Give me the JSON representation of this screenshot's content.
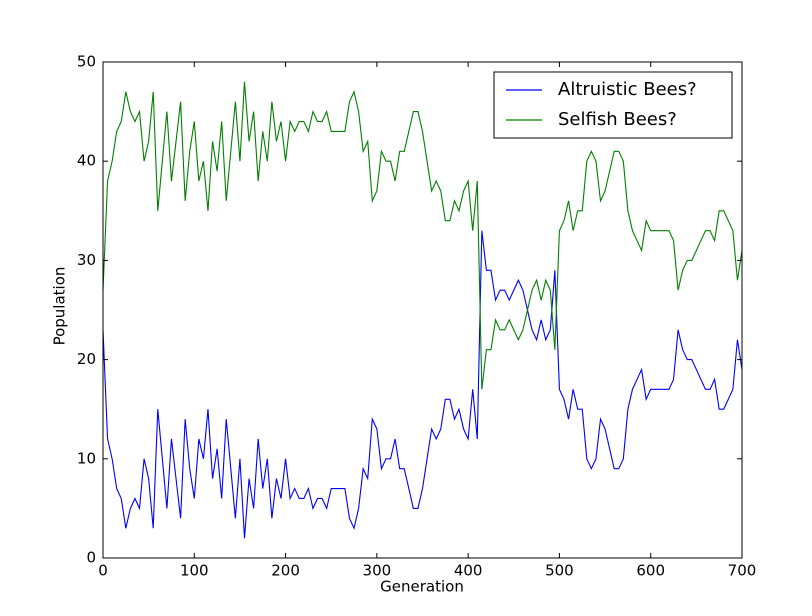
{
  "chart_data": {
    "type": "line",
    "x_label": "Generation",
    "y_label": "Population",
    "x": [
      0,
      5,
      10,
      15,
      20,
      25,
      30,
      35,
      40,
      45,
      50,
      55,
      60,
      65,
      70,
      75,
      80,
      85,
      90,
      95,
      100,
      105,
      110,
      115,
      120,
      125,
      130,
      135,
      140,
      145,
      150,
      155,
      160,
      165,
      170,
      175,
      180,
      185,
      190,
      195,
      200,
      205,
      210,
      215,
      220,
      225,
      230,
      235,
      240,
      245,
      250,
      255,
      260,
      265,
      270,
      275,
      280,
      285,
      290,
      295,
      300,
      305,
      310,
      315,
      320,
      325,
      330,
      335,
      340,
      345,
      350,
      355,
      360,
      365,
      370,
      375,
      380,
      385,
      390,
      395,
      400,
      405,
      410,
      415,
      420,
      425,
      430,
      435,
      440,
      445,
      450,
      455,
      460,
      465,
      470,
      475,
      480,
      485,
      490,
      495,
      500,
      505,
      510,
      515,
      520,
      525,
      530,
      535,
      540,
      545,
      550,
      555,
      560,
      565,
      570,
      575,
      580,
      585,
      590,
      595,
      600,
      605,
      610,
      615,
      620,
      625,
      630,
      635,
      640,
      645,
      650,
      655,
      660,
      665,
      670,
      675,
      680,
      685,
      690,
      695,
      700
    ],
    "series": [
      {
        "name": "Altruistic Bees?",
        "color": "#0000ff",
        "values": [
          23,
          12,
          10,
          7,
          6,
          3,
          5,
          6,
          5,
          10,
          8,
          3,
          15,
          10,
          5,
          12,
          8,
          4,
          14,
          9,
          6,
          12,
          10,
          15,
          8,
          11,
          6,
          14,
          9,
          4,
          10,
          2,
          8,
          5,
          12,
          7,
          10,
          4,
          8,
          6,
          10,
          6,
          7,
          6,
          6,
          7,
          5,
          6,
          6,
          5,
          7,
          7,
          7,
          7,
          4,
          3,
          5,
          9,
          8,
          14,
          13,
          9,
          10,
          10,
          12,
          9,
          9,
          7,
          5,
          5,
          7,
          10,
          13,
          12,
          13,
          16,
          16,
          14,
          15,
          13,
          12,
          17,
          12,
          33,
          29,
          29,
          26,
          27,
          27,
          26,
          27,
          28,
          27,
          25,
          23,
          22,
          24,
          22,
          23,
          29,
          17,
          16,
          14,
          17,
          15,
          15,
          10,
          9,
          10,
          14,
          13,
          11,
          9,
          9,
          10,
          15,
          17,
          18,
          19,
          16,
          17,
          17,
          17,
          17,
          17,
          18,
          23,
          21,
          20,
          20,
          19,
          18,
          17,
          17,
          18,
          15,
          15,
          16,
          17,
          22,
          19
        ]
      },
      {
        "name": "Selfish Bees?",
        "color": "#008000",
        "values": [
          27,
          38,
          40,
          43,
          44,
          47,
          45,
          44,
          45,
          40,
          42,
          47,
          35,
          40,
          45,
          38,
          42,
          46,
          36,
          41,
          44,
          38,
          40,
          35,
          42,
          39,
          44,
          36,
          41,
          46,
          40,
          48,
          42,
          45,
          38,
          43,
          40,
          46,
          42,
          44,
          40,
          44,
          43,
          44,
          44,
          43,
          45,
          44,
          44,
          45,
          43,
          43,
          43,
          43,
          46,
          47,
          45,
          41,
          42,
          36,
          37,
          41,
          40,
          40,
          38,
          41,
          41,
          43,
          45,
          45,
          43,
          40,
          37,
          38,
          37,
          34,
          34,
          36,
          35,
          37,
          38,
          33,
          38,
          17,
          21,
          21,
          24,
          23,
          23,
          24,
          23,
          22,
          23,
          25,
          27,
          28,
          26,
          28,
          27,
          21,
          33,
          34,
          36,
          33,
          35,
          35,
          40,
          41,
          40,
          36,
          37,
          39,
          41,
          41,
          40,
          35,
          33,
          32,
          31,
          34,
          33,
          33,
          33,
          33,
          33,
          32,
          27,
          29,
          30,
          30,
          31,
          32,
          33,
          33,
          32,
          35,
          35,
          34,
          33,
          28,
          31
        ]
      }
    ],
    "xlim": [
      0,
      700
    ],
    "xticks": [
      0,
      100,
      200,
      300,
      400,
      500,
      600,
      700
    ],
    "ylim": [
      0,
      50
    ],
    "yticks": [
      0,
      10,
      20,
      30,
      40,
      50
    ],
    "legend": "upper right"
  }
}
